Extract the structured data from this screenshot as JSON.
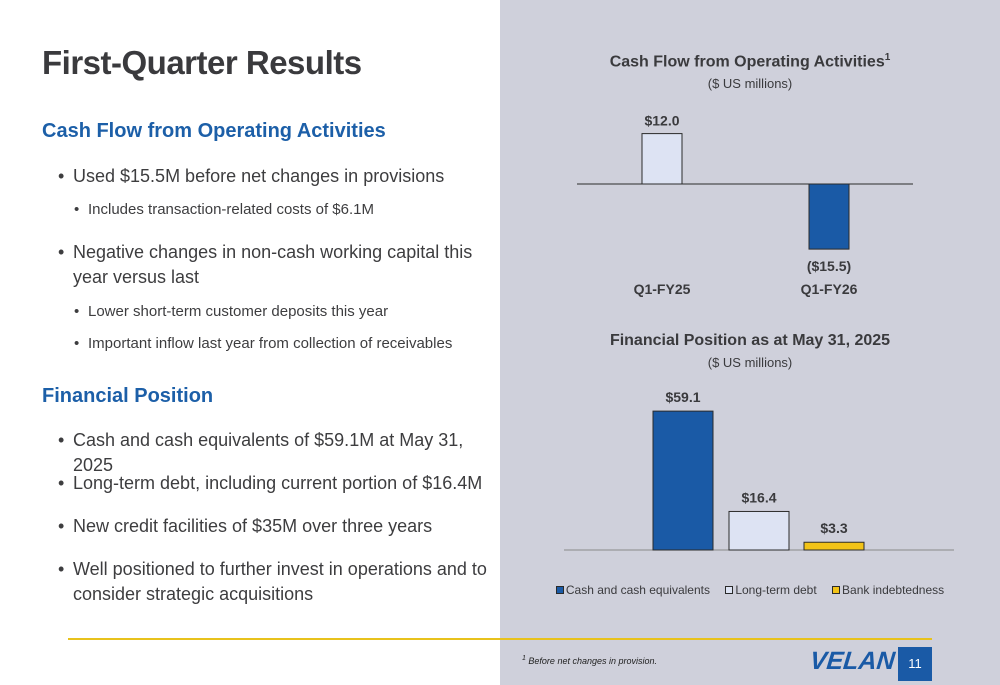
{
  "slide": {
    "title": "First-Quarter Results",
    "page_number": "11",
    "logo_text": "VELAN",
    "footnote_marker": "1",
    "footnote_text": "Before net changes in provision."
  },
  "cash_flow_section": {
    "heading": "Cash Flow from Operating Activities",
    "bullets": [
      "Used $15.5M before net changes in provisions",
      "Negative changes in non-cash working capital this year versus last"
    ],
    "sub_bullets": [
      "Includes transaction-related costs of $6.1M",
      "Lower short-term customer deposits this year",
      "Important inflow last year from collection of receivables"
    ]
  },
  "financial_position_section": {
    "heading": "Financial Position",
    "bullets": [
      "Cash and cash equivalents of $59.1M at May 31, 2025",
      "Long-term debt, including current portion of $16.4M",
      "New credit facilities of $35M over three years",
      "Well positioned to further invest in operations and to consider strategic acquisitions"
    ]
  },
  "colors": {
    "accent_blue": "#1c5fa8",
    "bar_blue": "#1a5aa6",
    "bar_light": "#dde3f3",
    "bar_yellow": "#f2c317",
    "panel_gray": "#cfd0db",
    "footer_line": "#e8c21c"
  },
  "chart_data": [
    {
      "type": "bar",
      "title": "Cash Flow from Operating Activities",
      "title_superscript": "1",
      "subtitle": "($ US millions)",
      "categories": [
        "Q1-FY25",
        "Q1-FY26"
      ],
      "values": [
        12.0,
        -15.5
      ],
      "value_labels": [
        "$12.0",
        "($15.5)"
      ],
      "bar_colors": [
        "#dde3f3",
        "#1a5aa6"
      ],
      "grid": false
    },
    {
      "type": "bar",
      "title": "Financial Position as at May 31, 2025",
      "subtitle": "($ US millions)",
      "categories": [
        "Cash and cash equivalents",
        "Long-term debt",
        "Bank indebtedness"
      ],
      "values": [
        59.1,
        16.4,
        3.3
      ],
      "value_labels": [
        "$59.1",
        "$16.4",
        "$3.3"
      ],
      "bar_colors": [
        "#1a5aa6",
        "#dde3f3",
        "#f2c317"
      ],
      "legend": [
        "Cash and cash equivalents",
        "Long-term debt",
        "Bank indebtedness"
      ],
      "legend_position": "bottom",
      "grid": false
    }
  ]
}
